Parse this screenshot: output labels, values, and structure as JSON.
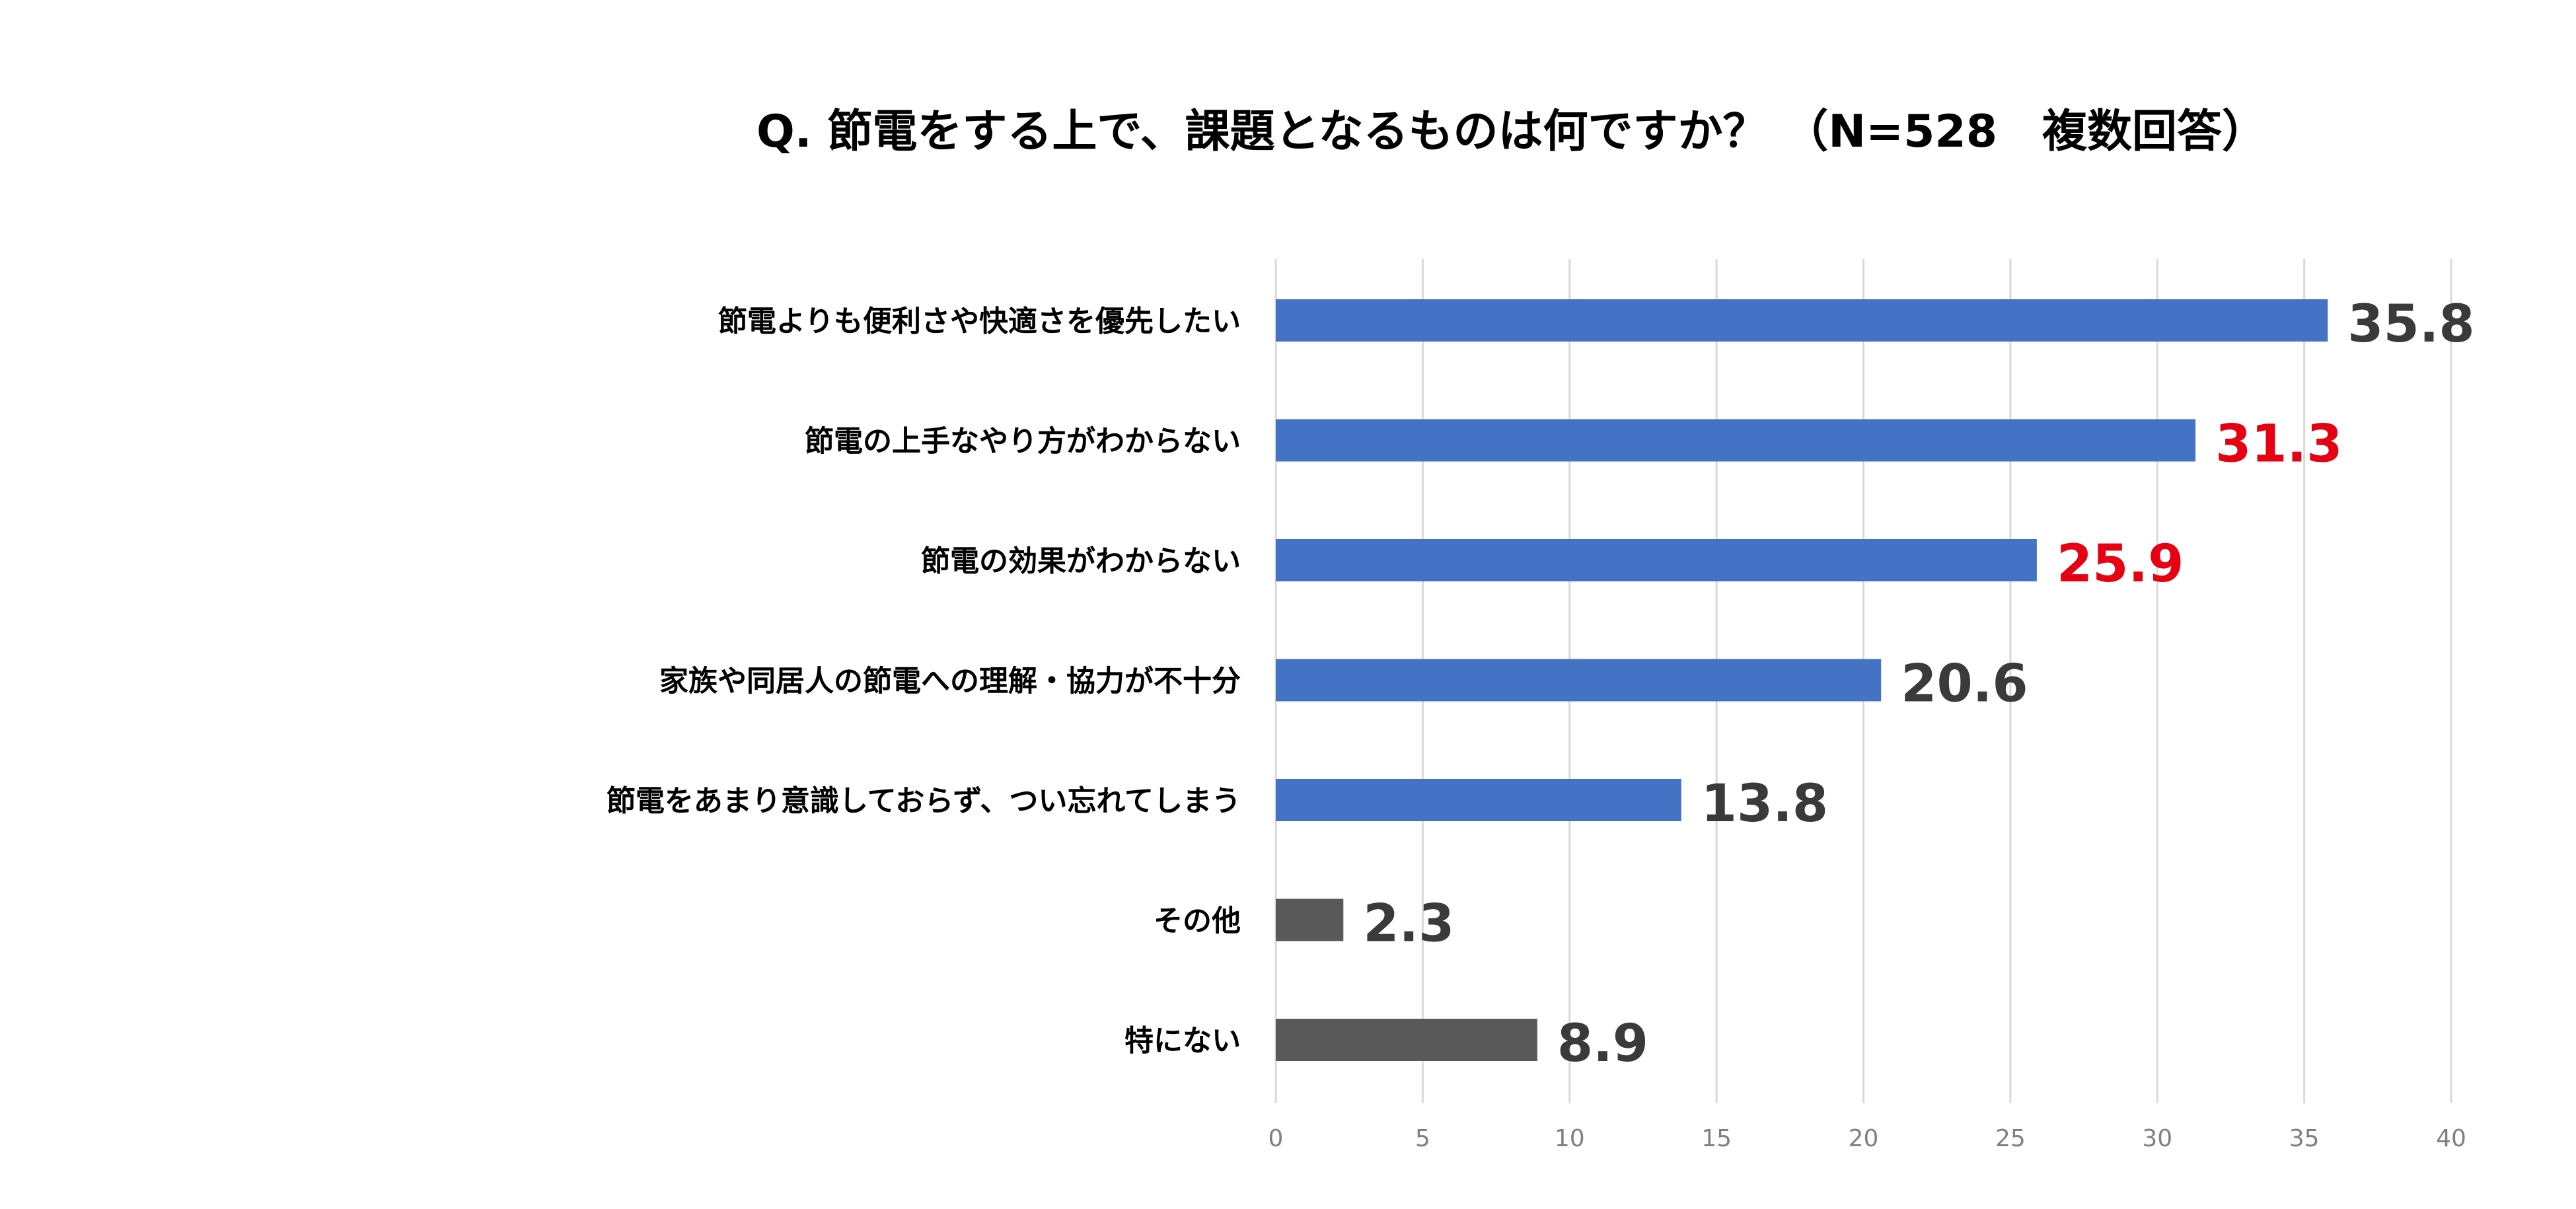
{
  "chart_data": {
    "type": "bar",
    "orientation": "horizontal",
    "title": "Q.  節電をする上で、課題となるものは何ですか？ （N=528　複数回答）",
    "categories": [
      "節電よりも便利さや快適さを優先したい",
      "節電の上手なやり方がわからない",
      "節電の効果がわからない",
      "家族や同居人の節電への理解・協力が不十分",
      "節電をあまり意識しておらず、つい忘れてしまう",
      "その他",
      "特にない"
    ],
    "values": [
      35.8,
      31.3,
      25.9,
      20.6,
      13.8,
      2.3,
      8.9
    ],
    "value_labels": [
      "35.8",
      "31.3",
      "25.9",
      "20.6",
      "13.8",
      "2.3",
      "8.9"
    ],
    "bar_colors": [
      "#4472c4",
      "#4472c4",
      "#4472c4",
      "#4472c4",
      "#4472c4",
      "#595959",
      "#595959"
    ],
    "label_colors": [
      "#3a3a3a",
      "#e60012",
      "#e60012",
      "#3a3a3a",
      "#3a3a3a",
      "#3a3a3a",
      "#3a3a3a"
    ],
    "xlim": [
      0,
      40
    ],
    "xticks": [
      0,
      5,
      10,
      15,
      20,
      25,
      30,
      35,
      40
    ],
    "xtick_labels": [
      "0",
      "5",
      "10",
      "15",
      "20",
      "25",
      "30",
      "35",
      "40"
    ],
    "grid": true,
    "legend": "none",
    "xlabel": "",
    "ylabel": ""
  }
}
